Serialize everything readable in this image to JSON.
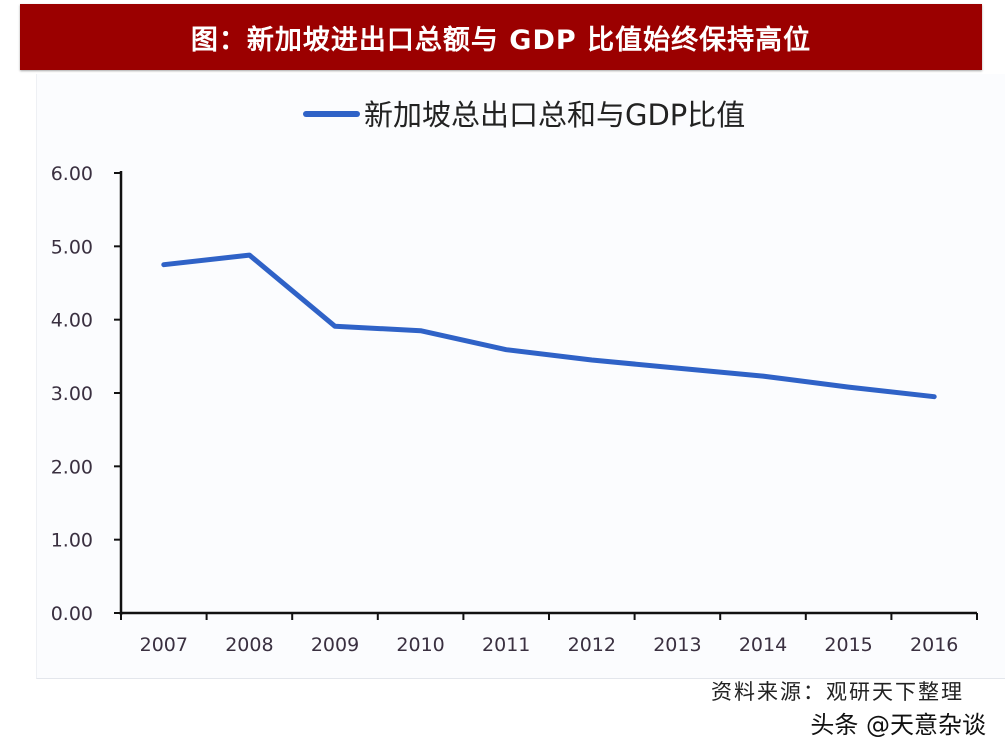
{
  "header": {
    "title": "图：新加坡进出口总额与 GDP 比值始终保持高位",
    "background_color": "#9b0000"
  },
  "legend": {
    "label": "新加坡总出口总和与GDP比值",
    "color": "#2f62c7"
  },
  "footer": {
    "source": "资料来源：观研天下整理",
    "watermark": "头条 @天意杂谈"
  },
  "chart_data": {
    "type": "line",
    "title": "图：新加坡进出口总额与 GDP 比值始终保持高位",
    "xlabel": "",
    "ylabel": "",
    "categories": [
      "2007",
      "2008",
      "2009",
      "2010",
      "2011",
      "2012",
      "2013",
      "2014",
      "2015",
      "2016"
    ],
    "series": [
      {
        "name": "新加坡总出口总和与GDP比值",
        "color": "#2f62c7",
        "values": [
          4.75,
          4.88,
          3.91,
          3.85,
          3.59,
          3.45,
          3.34,
          3.23,
          3.08,
          2.95
        ]
      }
    ],
    "ylim": [
      0,
      6
    ],
    "yticks": [
      "0.00",
      "1.00",
      "2.00",
      "3.00",
      "4.00",
      "5.00",
      "6.00"
    ],
    "grid": false,
    "legend_position": "top"
  }
}
